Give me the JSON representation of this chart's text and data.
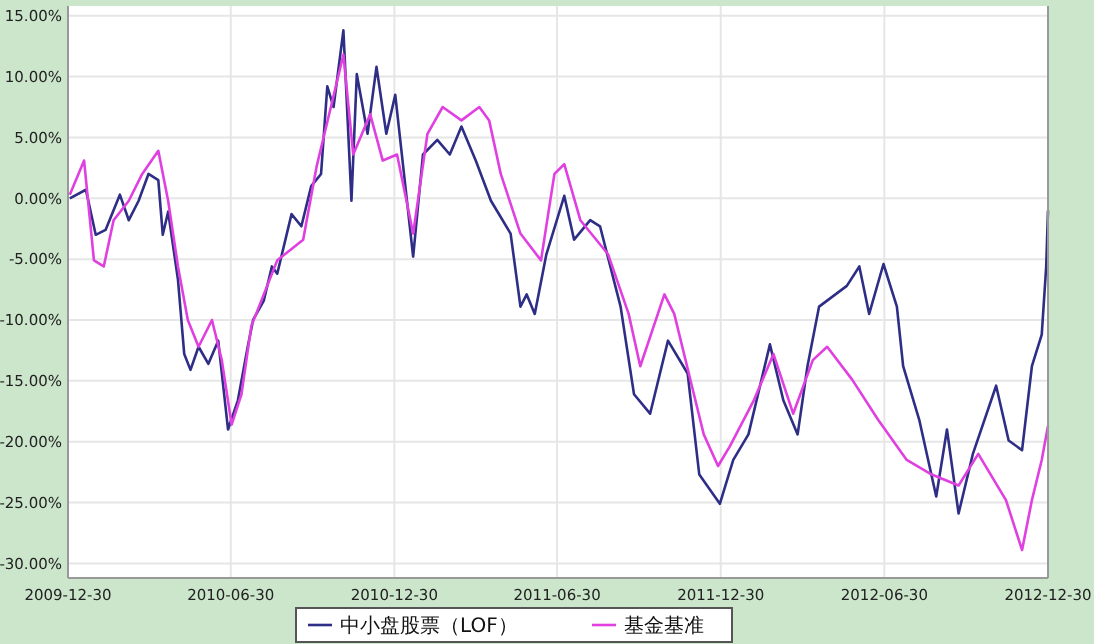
{
  "chart_data": {
    "type": "line",
    "xlim": [
      "2009-12-30",
      "2012-12-30"
    ],
    "xticks": [
      "2009-12-30",
      "2010-06-30",
      "2010-12-30",
      "2011-06-30",
      "2011-12-30",
      "2012-06-30",
      "2012-12-30"
    ],
    "ylim": [
      -31.2,
      15.8
    ],
    "yticks": [
      {
        "value": 15,
        "label": "15.00%"
      },
      {
        "value": 10,
        "label": "10.00%"
      },
      {
        "value": 5,
        "label": "5.00%"
      },
      {
        "value": 0,
        "label": "0.00%"
      },
      {
        "value": -5,
        "label": "-5.00%"
      },
      {
        "value": -10,
        "label": "-10.00%"
      },
      {
        "value": -15,
        "label": "-15.00%"
      },
      {
        "value": -20,
        "label": "-20.00%"
      },
      {
        "value": -25,
        "label": "-25.00%"
      },
      {
        "value": -30,
        "label": "-30.00%"
      }
    ],
    "grid": true,
    "legend": "bottom",
    "line_style": "solid",
    "marker": "none",
    "series": [
      {
        "name": "中小盘股票（LOF）",
        "color": "#2e2e86",
        "x": [
          "2010-01-01",
          "2010-01-19",
          "2010-01-30",
          "2010-02-10",
          "2010-02-26",
          "2010-03-08",
          "2010-03-19",
          "2010-03-30",
          "2010-04-10",
          "2010-04-15",
          "2010-04-21",
          "2010-05-02",
          "2010-05-09",
          "2010-05-16",
          "2010-05-25",
          "2010-06-05",
          "2010-06-16",
          "2010-06-27",
          "2010-07-08",
          "2010-07-19",
          "2010-07-25",
          "2010-08-06",
          "2010-08-15",
          "2010-08-21",
          "2010-09-06",
          "2010-09-17",
          "2010-09-28",
          "2010-10-09",
          "2010-10-16",
          "2010-10-23",
          "2010-11-03",
          "2010-11-12",
          "2010-11-18",
          "2010-11-30",
          "2010-12-10",
          "2010-12-21",
          "2010-12-31",
          "2011-01-20",
          "2011-01-31",
          "2011-02-16",
          "2011-03-02",
          "2011-03-15",
          "2011-03-31",
          "2011-04-17",
          "2011-05-09",
          "2011-05-20",
          "2011-05-27",
          "2011-06-05",
          "2011-06-18",
          "2011-07-08",
          "2011-07-19",
          "2011-08-06",
          "2011-08-17",
          "2011-09-09",
          "2011-09-24",
          "2011-10-12",
          "2011-11-01",
          "2011-11-23",
          "2011-12-06",
          "2011-12-29",
          "2012-01-13",
          "2012-01-30",
          "2012-02-23",
          "2012-03-09",
          "2012-03-25",
          "2012-04-05",
          "2012-04-18",
          "2012-05-19",
          "2012-06-02",
          "2012-06-13",
          "2012-06-29",
          "2012-07-14",
          "2012-07-21",
          "2012-08-08",
          "2012-08-27",
          "2012-09-08",
          "2012-09-21",
          "2012-10-07",
          "2012-11-02",
          "2012-11-16",
          "2012-12-01",
          "2012-12-12",
          "2012-12-23",
          "2012-12-28",
          "2012-12-30"
        ],
        "values": [
          0,
          0.7,
          -3,
          -2.6,
          0.3,
          -1.8,
          -0.2,
          2,
          1.5,
          -3,
          -1.1,
          -6.7,
          -12.8,
          -14.1,
          -12.2,
          -13.6,
          -11.7,
          -19,
          -16.6,
          -12.2,
          -10,
          -8.4,
          -5.6,
          -6.2,
          -1.3,
          -2.3,
          1,
          2,
          9.2,
          7.5,
          13.8,
          -0.2,
          10.2,
          5.3,
          10.8,
          5.3,
          8.5,
          -4.8,
          3.6,
          4.8,
          3.6,
          5.9,
          3.1,
          -0.2,
          -2.9,
          -8.9,
          -7.9,
          -9.5,
          -4.6,
          0.2,
          -3.4,
          -1.8,
          -2.3,
          -8.9,
          -16.1,
          -17.7,
          -11.7,
          -14.4,
          -22.7,
          -25.1,
          -21.5,
          -19.4,
          -12,
          -16.6,
          -19.4,
          -13.8,
          -8.9,
          -7.2,
          -5.6,
          -9.5,
          -5.4,
          -8.9,
          -13.8,
          -18.2,
          -24.5,
          -19,
          -25.9,
          -21,
          -15.4,
          -19.9,
          -20.7,
          -13.8,
          -11.2,
          -5.6,
          -1
        ]
      },
      {
        "name": "基金基准",
        "color": "#e040e0",
        "x": [
          "2010-01-01",
          "2010-01-17",
          "2010-01-28",
          "2010-02-08",
          "2010-02-19",
          "2010-03-08",
          "2010-03-23",
          "2010-04-10",
          "2010-04-21",
          "2010-05-02",
          "2010-05-13",
          "2010-05-25",
          "2010-06-09",
          "2010-06-20",
          "2010-07-01",
          "2010-07-12",
          "2010-07-23",
          "2010-08-21",
          "2010-09-19",
          "2010-10-04",
          "2010-10-20",
          "2010-11-03",
          "2010-11-14",
          "2010-12-03",
          "2010-12-17",
          "2011-01-02",
          "2011-01-20",
          "2011-02-05",
          "2011-02-22",
          "2011-03-15",
          "2011-04-04",
          "2011-04-15",
          "2011-04-28",
          "2011-05-20",
          "2011-06-12",
          "2011-06-20",
          "2011-06-27",
          "2011-07-08",
          "2011-07-26",
          "2011-08-26",
          "2011-09-18",
          "2011-10-01",
          "2011-10-28",
          "2011-11-08",
          "2011-11-30",
          "2011-12-11",
          "2011-12-27",
          "2012-01-09",
          "2012-02-05",
          "2012-02-27",
          "2012-03-20",
          "2012-04-11",
          "2012-04-27",
          "2012-05-25",
          "2012-06-23",
          "2012-07-25",
          "2012-08-22",
          "2012-09-21",
          "2012-10-13",
          "2012-11-13",
          "2012-12-01",
          "2012-12-12",
          "2012-12-23",
          "2012-12-30"
        ],
        "values": [
          0.3,
          3.1,
          -5.1,
          -5.6,
          -1.8,
          -0.2,
          2,
          3.9,
          -0.2,
          -5.6,
          -10,
          -12.2,
          -10,
          -13.3,
          -18.6,
          -16.1,
          -10.5,
          -5.1,
          -3.4,
          2.6,
          7.5,
          11.8,
          3.6,
          6.9,
          3.1,
          3.6,
          -2.9,
          5.3,
          7.5,
          6.4,
          7.5,
          6.4,
          2,
          -2.9,
          -5.1,
          -1.3,
          2,
          2.8,
          -1.8,
          -4.6,
          -9.5,
          -13.8,
          -7.9,
          -9.5,
          -16.1,
          -19.4,
          -22,
          -20.4,
          -16.6,
          -12.8,
          -17.7,
          -13.3,
          -12.2,
          -14.9,
          -18.2,
          -21.5,
          -22.7,
          -23.6,
          -21,
          -24.8,
          -28.9,
          -24.8,
          -21.5,
          -18.7
        ]
      }
    ]
  }
}
